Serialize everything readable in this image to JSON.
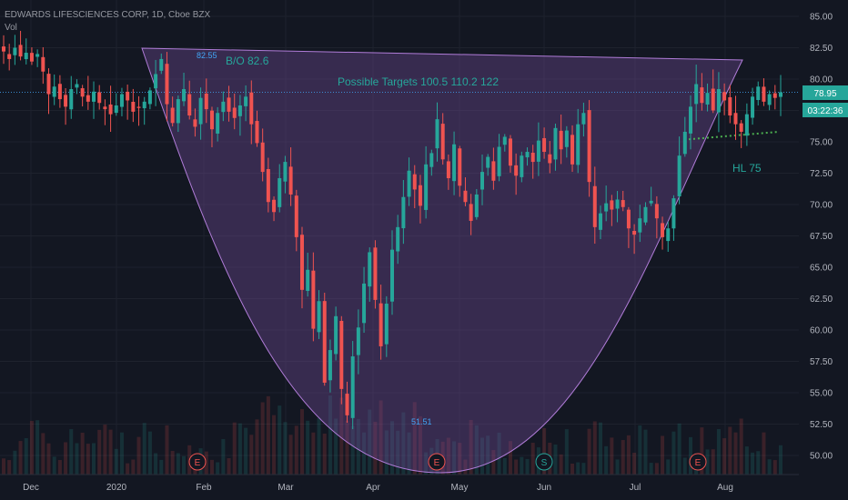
{
  "header": {
    "symbol_line": "EDWARDS LIFESCIENCES CORP, 1D, Cboe BZX",
    "volume_label": "Vol"
  },
  "annotations": {
    "breakout": "B/O 82.6",
    "targets": "Possible Targets  100.5  110.2  122",
    "higher_low": "HL 75",
    "high_label": "82.55",
    "low_label": "51.51"
  },
  "price_badge": {
    "value": "78.95",
    "countdown": "03:22:36"
  },
  "event_markers": [
    "E",
    "E",
    "S",
    "E"
  ],
  "colors": {
    "background": "#131722",
    "up": "#26a69a",
    "down": "#ef5350",
    "cup_fill": "#7b4fa3",
    "cup_line": "#b07cd8",
    "dotted_hl": "#4caf50",
    "price_badge": "#26a69a",
    "text_teal": "#26a69a",
    "text_blue": "#42a5f5"
  },
  "chart_data": {
    "type": "candlestick",
    "title": "EDWARDS LIFESCIENCES CORP, 1D, Cboe BZX",
    "y_axis": {
      "ticks": [
        "85.00",
        "82.50",
        "80.00",
        "77.50",
        "75.00",
        "72.50",
        "70.00",
        "67.50",
        "65.00",
        "62.50",
        "60.00",
        "57.50",
        "55.00",
        "52.50",
        "50.00"
      ],
      "range": [
        48.9,
        86.0
      ]
    },
    "x_axis": {
      "ticks": [
        "Dec",
        "2020",
        "Feb",
        "Mar",
        "Apr",
        "May",
        "Jun",
        "Jul",
        "Aug"
      ]
    },
    "last_price": 78.95,
    "series_close_approx": [
      82.2,
      81.6,
      82.5,
      81.8,
      82.1,
      81.4,
      82.0,
      80.6,
      78.8,
      79.4,
      78.4,
      77.8,
      79.2,
      79.6,
      78.6,
      78.2,
      79.0,
      78.1,
      77.6,
      77.2,
      77.9,
      78.8,
      78.3,
      77.4,
      77.7,
      78.2,
      79.1,
      80.4,
      81.6,
      78.0,
      76.5,
      78.4,
      79.2,
      77.1,
      76.2,
      78.5,
      77.6,
      76.0,
      77.3,
      78.2,
      77.4,
      76.9,
      77.9,
      78.6,
      76.4,
      74.9,
      72.6,
      70.2,
      69.4,
      72.1,
      73.4,
      70.8,
      67.4,
      63.2,
      64.8,
      60.1,
      62.3,
      55.8,
      58.4,
      61.1,
      55.3,
      53.2,
      57.9,
      60.2,
      63.7,
      66.2,
      62.4,
      58.7,
      62.1,
      66.4,
      68.2,
      70.6,
      72.7,
      71.2,
      69.9,
      73.2,
      74.1,
      76.8,
      73.6,
      72.1,
      74.8,
      71.5,
      70.2,
      68.7,
      70.8,
      72.6,
      73.8,
      71.9,
      74.6,
      75.4,
      73.1,
      72.3,
      73.9,
      74.2,
      73.4,
      75.1,
      74.2,
      73.3,
      76.1,
      74.4,
      75.9,
      73.2,
      76.4,
      77.3,
      71.8,
      68.2,
      69.3,
      70.1,
      69.6,
      70.4,
      69.8,
      68.1,
      67.6,
      68.9,
      69.8,
      70.3,
      68.9,
      67.4,
      68.1,
      70.5,
      73.9,
      75.8,
      77.8,
      79.6,
      78.1,
      78.9,
      77.5,
      79.2,
      78.3,
      77.1,
      76.4,
      75.8,
      77.2,
      78.6,
      79.4,
      78.2,
      78.8,
      78.5,
      78.95
    ],
    "overlay_shapes": [
      {
        "name": "cup",
        "points": [
          [
            "Jan",
            82.6
          ],
          [
            "Apr",
            49.0
          ],
          [
            "Aug",
            81.6
          ]
        ]
      },
      {
        "name": "possible targets line",
        "value": 78.95
      },
      {
        "name": "higher low trendline",
        "from": 75.2,
        "to": 75.8
      }
    ]
  }
}
